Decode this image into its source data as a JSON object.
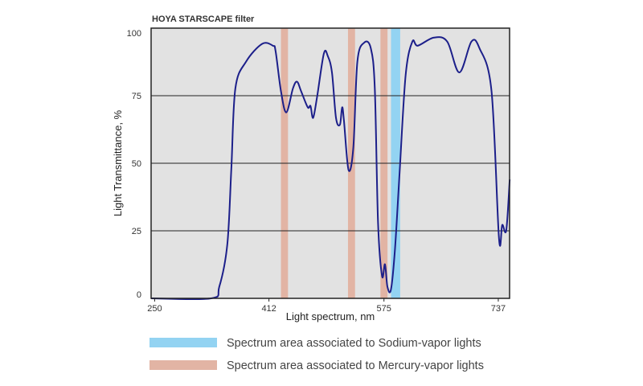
{
  "chart_data": {
    "type": "line",
    "title": "HOYA STARSCAPE filter",
    "xlabel": "Light spectrum, nm",
    "ylabel": "Light Transmittance, %",
    "xlim": [
      245,
      753
    ],
    "ylim": [
      0,
      100
    ],
    "xticks": [
      250,
      412,
      575,
      737
    ],
    "yticks": [
      0,
      25,
      50,
      75,
      100
    ],
    "grid": "horizontal",
    "colors": {
      "line": "#1c1f8a",
      "background": "#e2e2e2",
      "sodium": "#93d3f2",
      "mercury": "#e2b4a4",
      "grid": "#222222"
    },
    "bands": [
      {
        "type": "mercury",
        "range": [
          429,
          439
        ]
      },
      {
        "type": "mercury",
        "range": [
          524,
          534
        ]
      },
      {
        "type": "mercury",
        "range": [
          570,
          580
        ]
      },
      {
        "type": "sodium",
        "range": [
          585,
          598
        ]
      }
    ],
    "legend": [
      {
        "type": "sodium",
        "label": "Spectrum area associated to Sodium-vapor lights"
      },
      {
        "type": "mercury",
        "label": "Spectrum area associated to Mercury-vapor lights"
      }
    ],
    "legend_position": "bottom",
    "series": [
      {
        "name": "Transmittance",
        "points": [
          [
            245,
            0
          ],
          [
            330,
            0
          ],
          [
            341.6,
            4.3
          ],
          [
            353,
            20
          ],
          [
            358.7,
            48
          ],
          [
            364.4,
            77.7
          ],
          [
            379.6,
            87.6
          ],
          [
            402.4,
            94.2
          ],
          [
            417.6,
            93.5
          ],
          [
            421.4,
            91.5
          ],
          [
            429,
            76.7
          ],
          [
            436.6,
            68.8
          ],
          [
            446,
            77.7
          ],
          [
            451.8,
            80.2
          ],
          [
            457.5,
            76.7
          ],
          [
            467,
            70.7
          ],
          [
            470.9,
            71.2
          ],
          [
            474.6,
            66.8
          ],
          [
            480.3,
            74.7
          ],
          [
            489.8,
            90.6
          ],
          [
            495.5,
            89.6
          ],
          [
            501.3,
            83.6
          ],
          [
            507,
            66.8
          ],
          [
            512.6,
            64.3
          ],
          [
            515.7,
            70.7
          ],
          [
            518.3,
            65.7
          ],
          [
            524.8,
            47.5
          ],
          [
            531.6,
            55.9
          ],
          [
            537.3,
            87.6
          ],
          [
            546.8,
            94.6
          ],
          [
            556.3,
            92.6
          ],
          [
            562,
            77.7
          ],
          [
            566.6,
            28
          ],
          [
            572.3,
            8.2
          ],
          [
            576.4,
            12.6
          ],
          [
            579.9,
            4.3
          ],
          [
            584.9,
            3.3
          ],
          [
            590.6,
            18.2
          ],
          [
            597,
            45.9
          ],
          [
            605.7,
            82.6
          ],
          [
            615.2,
            95
          ],
          [
            622.9,
            93.5
          ],
          [
            645.7,
            96.5
          ],
          [
            664.7,
            95
          ],
          [
            681.8,
            83.6
          ],
          [
            698.9,
            95
          ],
          [
            710.3,
            92.6
          ],
          [
            727.4,
            76.7
          ],
          [
            738,
            22.2
          ],
          [
            742.6,
            27.2
          ],
          [
            748.3,
            25.2
          ],
          [
            753.2,
            44
          ]
        ]
      }
    ]
  }
}
